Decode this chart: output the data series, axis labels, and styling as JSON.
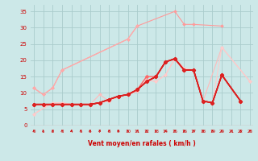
{
  "xlabel": "Vent moyen/en rafales ( km/h )",
  "background_color": "#cce8e8",
  "grid_color": "#aacccc",
  "x_values": [
    0,
    1,
    2,
    3,
    4,
    5,
    6,
    7,
    8,
    9,
    10,
    11,
    12,
    13,
    14,
    15,
    16,
    17,
    18,
    19,
    20,
    21,
    22,
    23
  ],
  "ylim": [
    0,
    37
  ],
  "yticks": [
    0,
    5,
    10,
    15,
    20,
    25,
    30,
    35
  ],
  "series": [
    {
      "color": "#ff9999",
      "linewidth": 0.8,
      "marker": "D",
      "markersize": 2.0,
      "data": [
        11.5,
        9.5,
        11.5,
        17.0,
        null,
        null,
        null,
        null,
        null,
        null,
        26.5,
        30.5,
        null,
        null,
        null,
        35.0,
        31.0,
        31.0,
        null,
        null,
        30.5,
        null,
        null,
        null
      ]
    },
    {
      "color": "#ffaaaa",
      "linewidth": 0.8,
      "marker": "D",
      "markersize": 2.0,
      "data": [
        11.5,
        9.5,
        11.5,
        17.0,
        null,
        null,
        null,
        null,
        null,
        null,
        26.5,
        30.5,
        null,
        null,
        null,
        null,
        null,
        null,
        null,
        null,
        null,
        null,
        null,
        null
      ]
    },
    {
      "color": "#ffbbbb",
      "linewidth": 0.8,
      "marker": "D",
      "markersize": 2.0,
      "data": [
        3.5,
        null,
        7.0,
        7.0,
        6.5,
        6.5,
        6.5,
        9.5,
        7.5,
        9.0,
        9.5,
        10.5,
        14.0,
        13.5,
        15.5,
        20.5,
        17.5,
        17.0,
        7.5,
        null,
        24.0,
        null,
        null,
        13.5
      ]
    },
    {
      "color": "#ffcccc",
      "linewidth": 0.8,
      "marker": "D",
      "markersize": 2.0,
      "data": [
        3.5,
        null,
        7.0,
        7.0,
        6.5,
        6.5,
        6.5,
        7.0,
        7.5,
        9.0,
        9.5,
        10.5,
        14.0,
        13.5,
        15.5,
        20.5,
        17.5,
        17.0,
        7.5,
        7.0,
        24.0,
        null,
        null,
        13.5
      ]
    },
    {
      "color": "#ff6666",
      "linewidth": 1.0,
      "marker": "D",
      "markersize": 2.5,
      "data": [
        6.5,
        6.5,
        6.5,
        6.5,
        6.5,
        6.5,
        6.5,
        7.0,
        8.0,
        9.0,
        9.5,
        11.0,
        15.0,
        15.0,
        19.5,
        20.5,
        17.0,
        17.0,
        7.5,
        7.0,
        15.5,
        null,
        7.5,
        null
      ]
    },
    {
      "color": "#ff4444",
      "linewidth": 1.0,
      "marker": "D",
      "markersize": 2.5,
      "data": [
        6.5,
        6.5,
        6.5,
        6.5,
        6.5,
        6.5,
        6.5,
        7.0,
        8.0,
        9.0,
        9.5,
        11.0,
        13.5,
        15.0,
        19.5,
        20.5,
        17.0,
        17.0,
        7.5,
        7.0,
        15.5,
        null,
        7.5,
        null
      ]
    },
    {
      "color": "#cc0000",
      "linewidth": 1.2,
      "marker": "D",
      "markersize": 2.5,
      "data": [
        6.5,
        6.5,
        6.5,
        6.5,
        6.5,
        6.5,
        6.5,
        7.0,
        8.0,
        9.0,
        9.5,
        11.0,
        13.5,
        15.0,
        19.5,
        20.5,
        17.0,
        17.0,
        7.5,
        7.0,
        15.5,
        null,
        7.5,
        null
      ]
    },
    {
      "color": "#dd2222",
      "linewidth": 1.0,
      "marker": "D",
      "markersize": 2.2,
      "data": [
        6.5,
        6.5,
        6.5,
        6.5,
        6.5,
        6.5,
        6.5,
        7.0,
        8.0,
        9.0,
        9.5,
        11.0,
        13.5,
        15.0,
        19.5,
        20.5,
        17.0,
        17.0,
        7.5,
        7.0,
        15.5,
        null,
        7.5,
        null
      ]
    }
  ],
  "wind_arrows_x": [
    0,
    1,
    2,
    3,
    4,
    5,
    6,
    7,
    8,
    9,
    10,
    11,
    12,
    13,
    14,
    15,
    16,
    17,
    18,
    19,
    20,
    21,
    22,
    23
  ],
  "arrow_color": "#cc0000"
}
